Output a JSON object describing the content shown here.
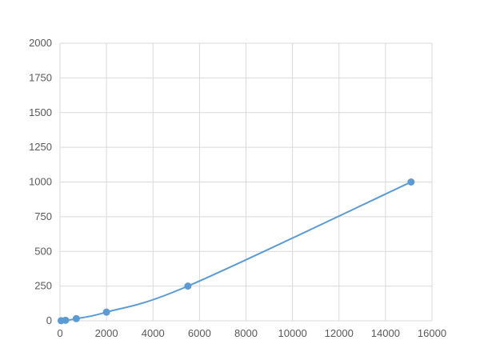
{
  "chart_data": {
    "type": "scatter",
    "title": "",
    "xlabel": "",
    "ylabel": "",
    "xlim": [
      0,
      16000
    ],
    "ylim": [
      0,
      2000
    ],
    "xticks": [
      0,
      2000,
      4000,
      6000,
      8000,
      10000,
      12000,
      14000,
      16000
    ],
    "yticks": [
      0,
      250,
      500,
      750,
      1000,
      1250,
      1500,
      1750,
      2000
    ],
    "grid": true,
    "smooth_line": true,
    "color": "#5b9bd5",
    "series": [
      {
        "x": [
          50,
          240,
          700,
          2000,
          5500,
          15100
        ],
        "y": [
          1,
          3.9,
          15.6,
          62.5,
          250,
          1000
        ]
      }
    ]
  }
}
